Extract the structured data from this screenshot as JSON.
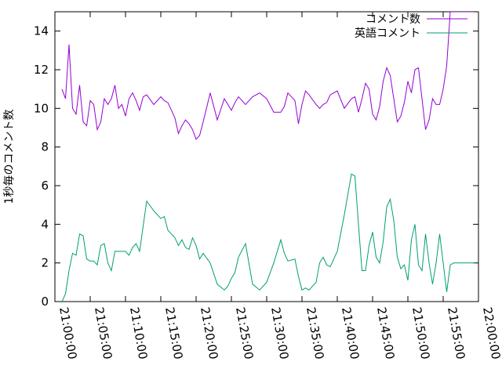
{
  "chart_data": {
    "type": "line",
    "title": "",
    "xlabel": "",
    "ylabel": "1秒毎のコメント数",
    "x_ticks": [
      "21:00:00",
      "21:05:00",
      "21:10:00",
      "21:15:00",
      "21:20:00",
      "21:25:00",
      "21:30:00",
      "21:35:00",
      "21:40:00",
      "21:45:00",
      "21:50:00",
      "21:55:00",
      "22:00:00"
    ],
    "y_ticks": [
      "0",
      "2",
      "4",
      "6",
      "8",
      "10",
      "12",
      "14"
    ],
    "xlim": [
      "21:00:00",
      "22:00:00"
    ],
    "ylim": [
      0,
      15
    ],
    "grid": false,
    "legend_position": "top-right",
    "series": [
      {
        "name": "コメント数",
        "color": "#9400d3",
        "x": [
          "21:01:00",
          "21:01:30",
          "21:02:00",
          "21:02:30",
          "21:03:00",
          "21:03:30",
          "21:04:00",
          "21:04:30",
          "21:05:00",
          "21:05:30",
          "21:06:00",
          "21:06:30",
          "21:07:00",
          "21:07:30",
          "21:08:00",
          "21:08:30",
          "21:09:00",
          "21:09:30",
          "21:10:00",
          "21:10:30",
          "21:11:00",
          "21:11:30",
          "21:12:00",
          "21:12:30",
          "21:13:00",
          "21:14:00",
          "21:15:00",
          "21:15:30",
          "21:16:00",
          "21:17:00",
          "21:17:30",
          "21:18:00",
          "21:18:30",
          "21:19:00",
          "21:19:30",
          "21:20:00",
          "21:20:30",
          "21:21:00",
          "21:22:00",
          "21:23:00",
          "21:24:00",
          "21:24:30",
          "21:25:00",
          "21:25:30",
          "21:26:00",
          "21:27:00",
          "21:28:00",
          "21:29:00",
          "21:30:00",
          "21:31:00",
          "21:32:00",
          "21:32:30",
          "21:33:00",
          "21:34:00",
          "21:34:30",
          "21:35:00",
          "21:35:30",
          "21:36:00",
          "21:37:00",
          "21:37:30",
          "21:38:00",
          "21:38:30",
          "21:39:00",
          "21:40:00",
          "21:41:00",
          "21:42:00",
          "21:42:30",
          "21:43:00",
          "21:43:30",
          "21:44:00",
          "21:44:30",
          "21:45:00",
          "21:45:30",
          "21:46:00",
          "21:46:30",
          "21:47:00",
          "21:47:30",
          "21:48:00",
          "21:48:30",
          "21:49:00",
          "21:49:30",
          "21:50:00",
          "21:50:30",
          "21:51:00",
          "21:51:30",
          "21:52:00",
          "21:52:30",
          "21:53:00",
          "21:53:30",
          "21:54:00",
          "21:54:30",
          "21:55:00",
          "21:55:30",
          "21:56:00",
          "21:56:30",
          "21:57:00",
          "21:57:30",
          "21:58:00",
          "21:58:30",
          "21:59:00",
          "21:59:20"
        ],
        "y": [
          11.0,
          10.5,
          13.3,
          10.0,
          9.7,
          11.2,
          9.3,
          9.1,
          10.4,
          10.2,
          8.9,
          9.3,
          10.5,
          10.2,
          10.5,
          11.2,
          10.0,
          10.2,
          9.6,
          10.5,
          10.8,
          10.4,
          9.9,
          10.6,
          10.7,
          10.2,
          10.6,
          10.4,
          10.3,
          9.5,
          8.7,
          9.1,
          9.4,
          9.2,
          8.9,
          8.4,
          8.6,
          9.3,
          10.8,
          9.4,
          10.5,
          10.2,
          9.9,
          10.3,
          10.6,
          10.2,
          10.6,
          10.8,
          10.5,
          9.8,
          9.8,
          10.1,
          10.8,
          10.4,
          9.2,
          10.2,
          10.9,
          10.7,
          10.2,
          10.0,
          10.2,
          10.3,
          10.7,
          10.9,
          10.0,
          10.5,
          10.6,
          9.8,
          10.5,
          11.3,
          11.0,
          9.7,
          9.4,
          10.1,
          11.4,
          12.1,
          11.7,
          10.5,
          9.3,
          9.6,
          10.3,
          11.4,
          10.8,
          12.0,
          12.1,
          10.5,
          8.9,
          9.4,
          10.5,
          10.2,
          10.2,
          11.0,
          12.2,
          15.0,
          15.0,
          15.0,
          15.0,
          15.0,
          15.0,
          15.0,
          15.0
        ]
      },
      {
        "name": "英語コメント",
        "color": "#009e73",
        "x": [
          "21:01:00",
          "21:01:30",
          "21:02:00",
          "21:02:30",
          "21:03:00",
          "21:03:30",
          "21:04:00",
          "21:04:30",
          "21:05:00",
          "21:05:30",
          "21:06:00",
          "21:06:30",
          "21:07:00",
          "21:07:30",
          "21:08:00",
          "21:08:30",
          "21:09:00",
          "21:09:30",
          "21:10:00",
          "21:10:30",
          "21:11:00",
          "21:11:30",
          "21:12:00",
          "21:12:30",
          "21:13:00",
          "21:14:00",
          "21:15:00",
          "21:15:30",
          "21:16:00",
          "21:17:00",
          "21:17:30",
          "21:18:00",
          "21:18:30",
          "21:19:00",
          "21:19:30",
          "21:20:00",
          "21:20:30",
          "21:21:00",
          "21:22:00",
          "21:23:00",
          "21:24:00",
          "21:24:30",
          "21:25:00",
          "21:25:30",
          "21:26:00",
          "21:27:00",
          "21:28:00",
          "21:29:00",
          "21:30:00",
          "21:31:00",
          "21:32:00",
          "21:32:30",
          "21:33:00",
          "21:34:00",
          "21:34:30",
          "21:35:00",
          "21:35:30",
          "21:36:00",
          "21:37:00",
          "21:37:30",
          "21:38:00",
          "21:38:30",
          "21:39:00",
          "21:40:00",
          "21:41:00",
          "21:42:00",
          "21:42:30",
          "21:43:00",
          "21:43:30",
          "21:44:00",
          "21:44:30",
          "21:45:00",
          "21:45:30",
          "21:46:00",
          "21:46:30",
          "21:47:00",
          "21:47:30",
          "21:48:00",
          "21:48:30",
          "21:49:00",
          "21:49:30",
          "21:50:00",
          "21:50:30",
          "21:51:00",
          "21:51:30",
          "21:52:00",
          "21:52:30",
          "21:53:00",
          "21:53:30",
          "21:54:00",
          "21:54:30",
          "21:55:00",
          "21:55:30",
          "21:56:00",
          "21:56:30",
          "21:57:00",
          "21:57:30",
          "21:58:00",
          "21:58:30",
          "21:59:00",
          "21:59:30"
        ],
        "y": [
          0.0,
          0.4,
          1.6,
          2.5,
          2.4,
          3.5,
          3.4,
          2.2,
          2.1,
          2.1,
          1.9,
          2.9,
          3.0,
          2.0,
          1.6,
          2.6,
          2.6,
          2.6,
          2.6,
          2.4,
          2.8,
          3.0,
          2.6,
          3.9,
          5.2,
          4.7,
          4.3,
          4.4,
          3.7,
          3.3,
          2.9,
          3.2,
          2.8,
          2.7,
          3.3,
          2.9,
          2.2,
          2.5,
          2.0,
          0.9,
          0.6,
          0.8,
          1.2,
          1.5,
          2.3,
          3.0,
          0.9,
          0.6,
          1.0,
          2.0,
          3.2,
          2.5,
          2.1,
          2.2,
          1.3,
          0.6,
          0.7,
          0.6,
          1.0,
          2.0,
          2.3,
          1.9,
          1.8,
          2.6,
          4.5,
          6.6,
          6.5,
          4.0,
          1.6,
          1.6,
          2.9,
          3.6,
          2.3,
          2.0,
          3.1,
          4.9,
          5.3,
          4.2,
          2.3,
          1.7,
          1.9,
          1.1,
          3.2,
          4.0,
          1.9,
          1.6,
          3.5,
          2.0,
          0.9,
          2.0,
          3.5,
          2.0,
          0.5,
          1.9,
          2.0,
          2.0,
          2.0,
          2.0,
          2.0,
          2.0,
          2.0
        ]
      }
    ]
  }
}
